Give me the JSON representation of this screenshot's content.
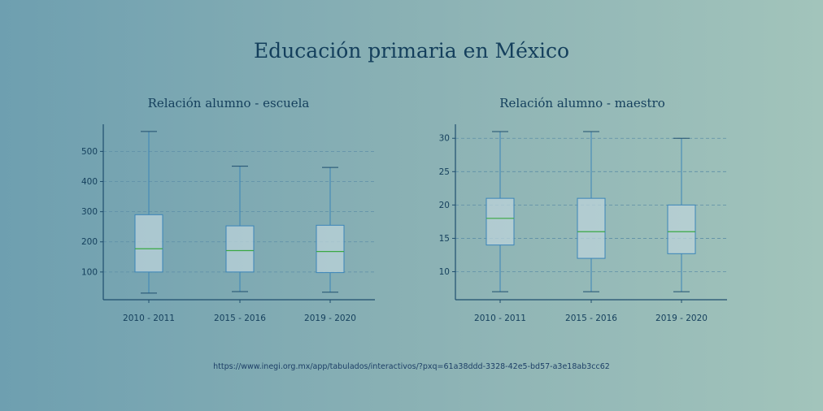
{
  "title": "Educación primaria en México",
  "source": "https://www.inegi.org.mx/app/tabulados/interactivos/?pxq=61a38ddd-3328-42e5-bd57-a3e18ab3cc62",
  "colors": {
    "box_fill": "#bcd3da",
    "box_edge": "#3a84b8",
    "median": "#3aa844",
    "axis": "#1f4e6e",
    "grid": "#5d8ea6",
    "text": "#143f5c"
  },
  "chart_data": [
    {
      "type": "box",
      "title": "Relación alumno - escuela",
      "categories": [
        "2010 - 2011",
        "2015 - 2016",
        "2019 - 2020"
      ],
      "yticks": [
        100,
        200,
        300,
        400,
        500
      ],
      "ylim": [
        8,
        590
      ],
      "grid": "horizontal, dashed",
      "boxes": [
        {
          "whislo": 30,
          "q1": 100,
          "median": 177,
          "q3": 290,
          "whishi": 566
        },
        {
          "whislo": 35,
          "q1": 100,
          "median": 171,
          "q3": 253,
          "whishi": 451
        },
        {
          "whislo": 33,
          "q1": 98,
          "median": 168,
          "q3": 255,
          "whishi": 447
        }
      ]
    },
    {
      "type": "box",
      "title": "Relación alumno - maestro",
      "categories": [
        "2010 - 2011",
        "2015 - 2016",
        "2019 - 2020"
      ],
      "yticks": [
        10,
        15,
        20,
        25,
        30
      ],
      "ylim": [
        5.8,
        32.1
      ],
      "grid": "horizontal, dashed",
      "boxes": [
        {
          "whislo": 7,
          "q1": 14,
          "median": 18,
          "q3": 21,
          "whishi": 31
        },
        {
          "whislo": 7,
          "q1": 12,
          "median": 16,
          "q3": 21,
          "whishi": 31
        },
        {
          "whislo": 7,
          "q1": 12.7,
          "median": 16,
          "q3": 20,
          "whishi": 30
        }
      ]
    }
  ]
}
